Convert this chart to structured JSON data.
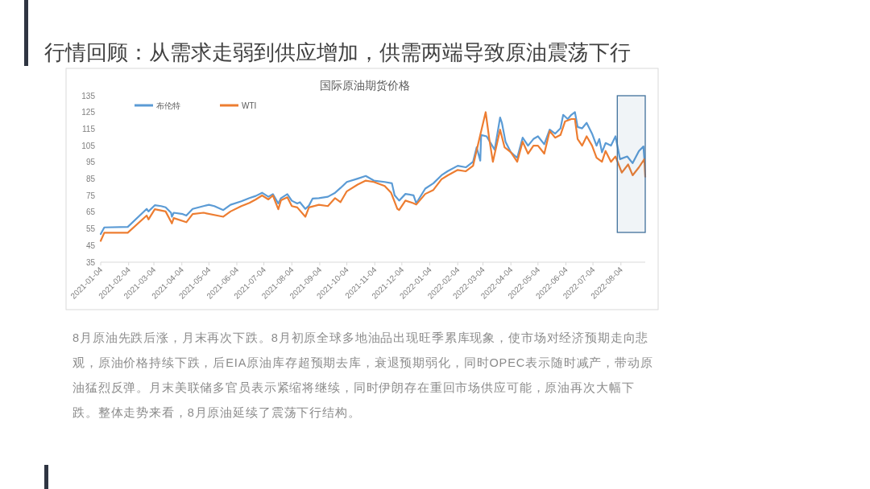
{
  "chart_data": {
    "type": "line",
    "title": "国际原油期货价格",
    "annotations": [
      "行情回顾：从需求走弱到供应增加，供需两端导致原油震荡下行",
      "8月原油先跌后涨，月末再次下跌。8月初原全球多地油品出现旺季累库现象，使市场对经济预期走向悲观，原油价格持续下跌，后EIA原油库存超预期去库，衰退预期弱化，同时OPEC表示随时减产，带动原油猛烈反弹。月末美联储多官员表示紧缩将继续，同时伊朗存在重回市场供应可能，原油再次大幅下跌。整体走势来看，8月原油延续了震荡下行结构。"
    ],
    "xlim": [
      "2021-01-04",
      "2022-08-31"
    ],
    "xticks": [
      {
        "value": "2021-01-04",
        "label": "2021-01-04"
      },
      {
        "value": "2021-02-04",
        "label": "2021-02-04"
      },
      {
        "value": "2021-03-04",
        "label": "2021-03-04"
      },
      {
        "value": "2021-04-04",
        "label": "2021-04-04"
      },
      {
        "value": "2021-05-04",
        "label": "2021-05-04"
      },
      {
        "value": "2021-06-04",
        "label": "2021-06-04"
      },
      {
        "value": "2021-07-04",
        "label": "2021-07-04"
      },
      {
        "value": "2021-08-04",
        "label": "2021-08-04"
      },
      {
        "value": "2021-09-04",
        "label": "2021-09-04"
      },
      {
        "value": "2021-10-04",
        "label": "2021-10-04"
      },
      {
        "value": "2021-11-04",
        "label": "2021-11-04"
      },
      {
        "value": "2021-12-04",
        "label": "2021-12-04"
      },
      {
        "value": "2022-01-04",
        "label": "2022-01-04"
      },
      {
        "value": "2022-02-04",
        "label": "2022-02-04"
      },
      {
        "value": "2022-03-04",
        "label": "2022-03-04"
      },
      {
        "value": "2022-04-04",
        "label": "2022-04-04"
      },
      {
        "value": "2022-05-04",
        "label": "2022-05-04"
      },
      {
        "value": "2022-06-04",
        "label": "2022-06-04"
      },
      {
        "value": "2022-07-04",
        "label": "2022-07-04"
      },
      {
        "value": "2022-08-04",
        "label": "2022-08-04"
      }
    ],
    "ylim": [
      35,
      135
    ],
    "yticks": [
      35,
      45,
      55,
      65,
      75,
      85,
      95,
      105,
      115,
      125,
      135
    ],
    "grid": false,
    "legend": "top left",
    "marker": "none",
    "line_style": "solid",
    "bands": [
      {
        "axis": "x",
        "from": "2022-07-31",
        "to": "2022-08-31",
        "color": "#41719c"
      }
    ],
    "series": [
      {
        "name": "布伦特",
        "color": "#5b9bd5",
        "x": [
          "2021-01-04",
          "2021-01-08",
          "2021-02-03",
          "2021-02-24",
          "2021-02-26",
          "2021-03-05",
          "2021-03-12",
          "2021-03-17",
          "2021-03-23",
          "2021-03-24",
          "2021-03-26",
          "2021-04-05",
          "2021-04-09",
          "2021-04-16",
          "2021-04-28",
          "2021-05-04",
          "2021-05-10",
          "2021-05-20",
          "2021-05-28",
          "2021-06-09",
          "2021-06-18",
          "2021-06-25",
          "2021-07-02",
          "2021-07-09",
          "2021-07-14",
          "2021-07-20",
          "2021-07-23",
          "2021-07-30",
          "2021-08-04",
          "2021-08-10",
          "2021-08-13",
          "2021-08-19",
          "2021-08-23",
          "2021-08-27",
          "2021-09-03",
          "2021-09-13",
          "2021-09-21",
          "2021-09-27",
          "2021-10-04",
          "2021-10-16",
          "2021-10-25",
          "2021-11-03",
          "2021-11-15",
          "2021-11-23",
          "2021-11-26",
          "2021-12-01",
          "2021-12-08",
          "2021-12-17",
          "2021-12-20",
          "2021-12-30",
          "2022-01-08",
          "2022-01-17",
          "2022-01-24",
          "2022-02-04",
          "2022-02-13",
          "2022-02-21",
          "2022-02-25",
          "2022-03-01",
          "2022-03-02",
          "2022-03-08",
          "2022-03-17",
          "2022-03-23",
          "2022-03-25",
          "2022-03-29",
          "2022-04-04",
          "2022-04-11",
          "2022-04-17",
          "2022-04-23",
          "2022-04-29",
          "2022-05-04",
          "2022-05-11",
          "2022-05-17",
          "2022-05-23",
          "2022-05-29",
          "2022-06-01",
          "2022-06-06",
          "2022-06-10",
          "2022-06-14",
          "2022-06-17",
          "2022-06-22",
          "2022-06-27",
          "2022-07-03",
          "2022-07-08",
          "2022-07-11",
          "2022-07-14",
          "2022-07-18",
          "2022-07-24",
          "2022-07-29",
          "2022-08-03",
          "2022-08-11",
          "2022-08-17",
          "2022-08-24",
          "2022-08-29",
          "2022-08-30"
        ],
        "values": [
          51.9,
          55.9,
          56.2,
          67,
          65.5,
          69.2,
          68.7,
          68,
          64.7,
          62.3,
          64.7,
          63.9,
          63,
          67,
          68.7,
          69.5,
          68.7,
          66.3,
          69.5,
          71.6,
          73.5,
          74.8,
          76.7,
          74.3,
          75.9,
          70.3,
          73.5,
          75.9,
          71.9,
          70.3,
          71,
          67,
          69,
          73.2,
          73.5,
          74.3,
          76.7,
          79.6,
          83.2,
          85.2,
          86.8,
          84,
          83.2,
          82.4,
          75.2,
          72,
          76,
          75.2,
          70.4,
          79.2,
          82.4,
          87.2,
          89.7,
          92.9,
          92,
          95.3,
          104,
          96,
          111.4,
          110.6,
          102.6,
          121.9,
          118.7,
          107.4,
          101,
          97.7,
          109.8,
          105,
          109,
          110.6,
          105.8,
          114.6,
          112.2,
          115.4,
          123.5,
          121,
          123.5,
          125.1,
          116.2,
          115.4,
          118.7,
          112.2,
          105,
          109,
          101,
          106.6,
          105,
          110.6,
          96.9,
          98.5,
          94.5,
          101.8,
          104.5,
          96.9
        ]
      },
      {
        "name": "WTI",
        "color": "#ed7d31",
        "x": [
          "2021-01-04",
          "2021-01-08",
          "2021-02-03",
          "2021-02-24",
          "2021-02-26",
          "2021-03-05",
          "2021-03-17",
          "2021-03-24",
          "2021-03-26",
          "2021-04-09",
          "2021-04-16",
          "2021-04-28",
          "2021-05-20",
          "2021-05-28",
          "2021-06-09",
          "2021-06-18",
          "2021-06-25",
          "2021-07-02",
          "2021-07-09",
          "2021-07-14",
          "2021-07-20",
          "2021-07-23",
          "2021-07-30",
          "2021-08-04",
          "2021-08-10",
          "2021-08-19",
          "2021-08-23",
          "2021-09-03",
          "2021-09-13",
          "2021-09-21",
          "2021-09-27",
          "2021-10-04",
          "2021-10-16",
          "2021-10-25",
          "2021-11-03",
          "2021-11-15",
          "2021-11-22",
          "2021-11-29",
          "2021-12-01",
          "2021-12-08",
          "2021-12-17",
          "2021-12-20",
          "2021-12-30",
          "2022-01-08",
          "2022-01-17",
          "2022-01-24",
          "2022-02-04",
          "2022-02-13",
          "2022-02-21",
          "2022-03-01",
          "2022-03-07",
          "2022-03-11",
          "2022-03-15",
          "2022-03-23",
          "2022-03-28",
          "2022-04-04",
          "2022-04-11",
          "2022-04-17",
          "2022-04-23",
          "2022-04-29",
          "2022-05-04",
          "2022-05-11",
          "2022-05-17",
          "2022-05-23",
          "2022-05-29",
          "2022-06-03",
          "2022-06-10",
          "2022-06-14",
          "2022-06-17",
          "2022-06-22",
          "2022-06-27",
          "2022-07-03",
          "2022-07-08",
          "2022-07-14",
          "2022-07-18",
          "2022-07-24",
          "2022-07-29",
          "2022-08-05",
          "2022-08-12",
          "2022-08-17",
          "2022-08-24",
          "2022-08-30",
          "2022-08-31"
        ],
        "values": [
          47.8,
          52.7,
          52.7,
          63,
          60.7,
          66.8,
          65.5,
          58.3,
          61.5,
          59,
          63.9,
          64.7,
          62.3,
          65.5,
          68.7,
          70.6,
          72.7,
          75.1,
          72.7,
          75.1,
          66.8,
          72.2,
          74,
          68.7,
          67.9,
          62.3,
          67.9,
          69.5,
          68.7,
          73.5,
          71.1,
          77.6,
          81.6,
          84,
          83.2,
          80.8,
          76.8,
          67.1,
          66.3,
          72,
          70.4,
          69.6,
          76,
          78.4,
          84.8,
          87.2,
          90.4,
          89.6,
          92.9,
          111.4,
          125.1,
          109,
          95.3,
          114.6,
          104,
          101,
          95.3,
          107.4,
          100.2,
          105,
          105,
          100.2,
          113.8,
          109.8,
          111.4,
          119.5,
          121,
          121,
          109,
          105,
          110.6,
          105,
          97.7,
          95.3,
          101.8,
          95.3,
          98.5,
          88.8,
          93.7,
          87.2,
          92,
          96.9,
          86.4
        ]
      }
    ]
  }
}
